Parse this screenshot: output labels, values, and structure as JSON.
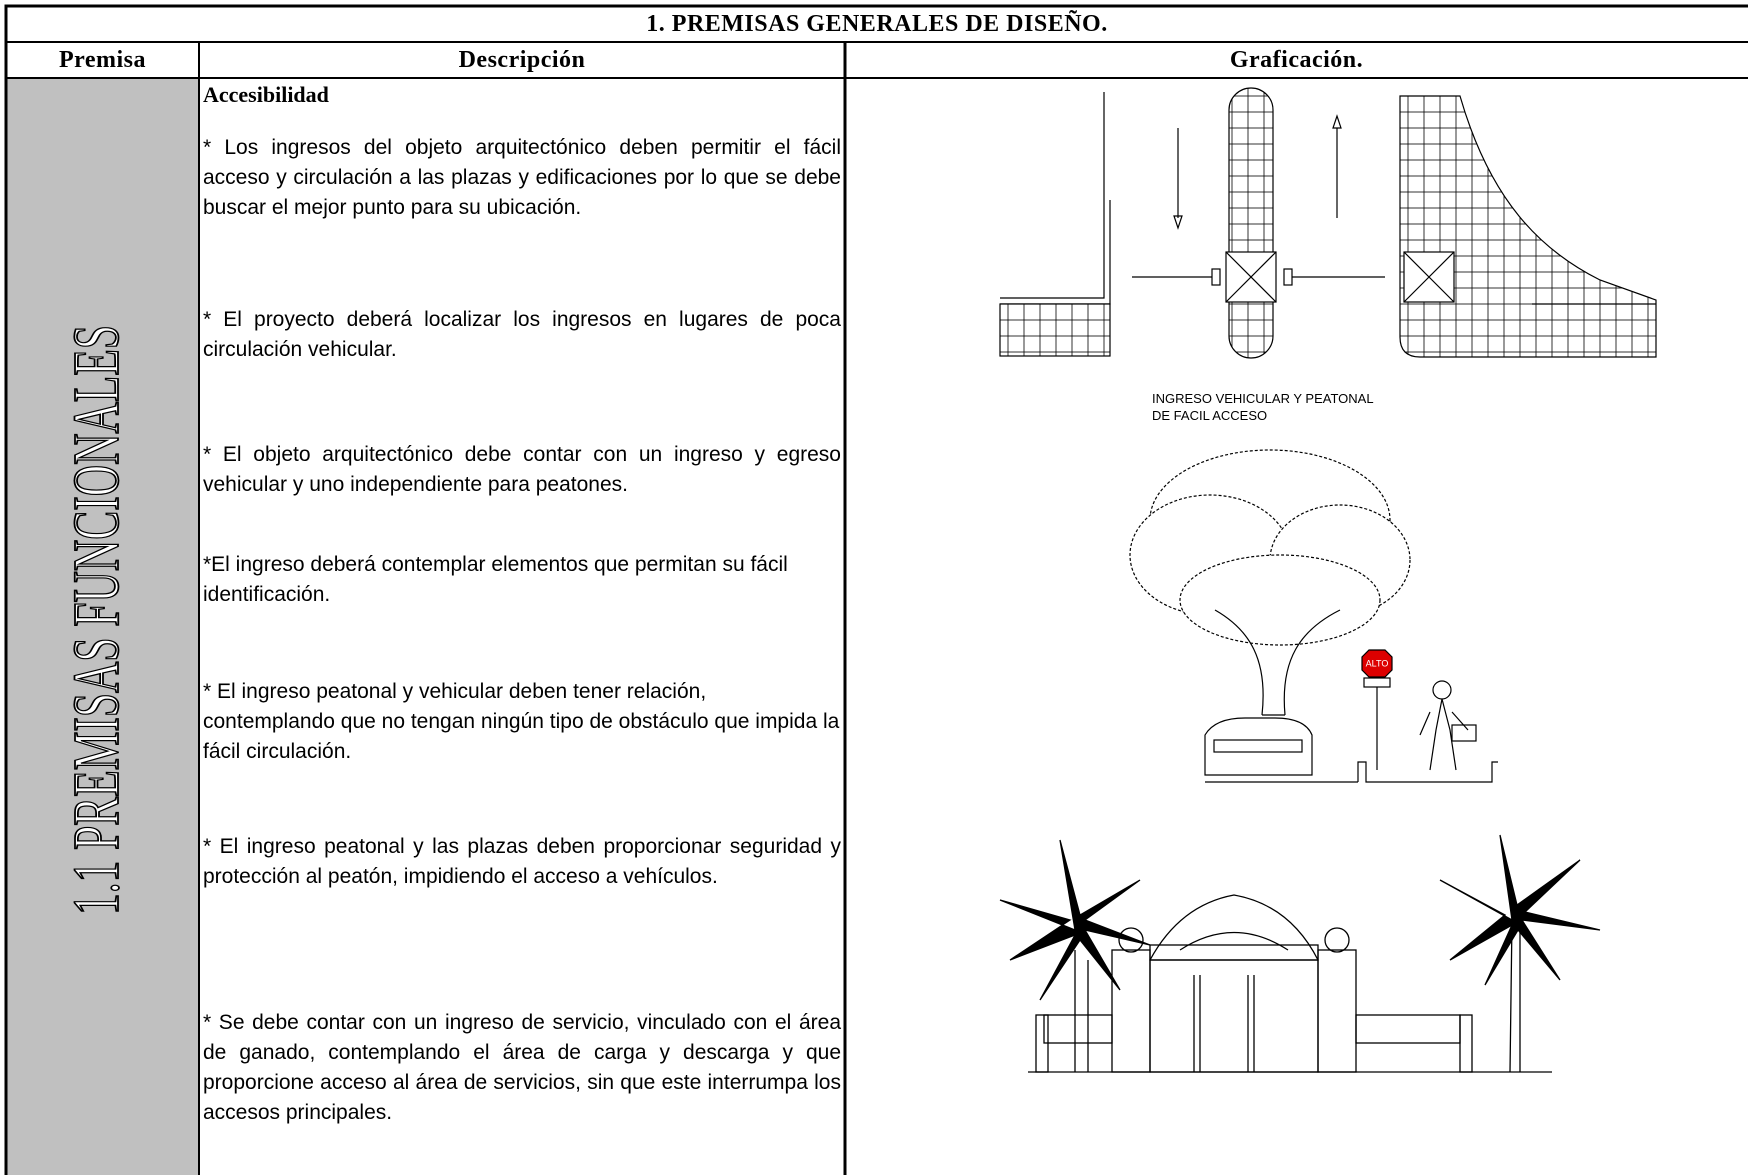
{
  "title": "1. PREMISAS GENERALES DE DISEÑO.",
  "headers": [
    "Premisa",
    "Descripción",
    "Graficación."
  ],
  "premisa": "1.1 PREMISAS FUNCIONALES",
  "description": {
    "heading": "Accesibilidad",
    "paragraphs": [
      "* Los ingresos del objeto arquitectónico deben permitir el fácil acceso y circulación a las plazas y edificaciones por lo que se debe buscar el mejor punto para su ubicación.",
      "* El proyecto deberá localizar los ingresos en lugares de poca circulación vehicular.",
      "* El objeto arquitectónico debe contar con un ingreso y egreso vehicular y uno independiente para peatones.",
      "*El ingreso deberá contemplar elementos que permitan su fácil identificación.",
      "* El ingreso peatonal y vehicular deben tener relación, contemplando que no tengan ningún tipo de obstáculo que impida la fácil circulación.",
      "* El ingreso peatonal y las plazas deben proporcionar seguridad y protección al peatón, impidiendo el acceso a vehículos.",
      "* Se debe contar con un ingreso de servicio, vinculado con el área de ganado, contemplando el área de carga y descarga y que proporcione acceso al área de servicios, sin que este interrumpa los accesos principales."
    ]
  },
  "graphic": {
    "caption": [
      "INGRESO VEHICULAR Y PEATONAL",
      "DE FACIL ACCESO"
    ],
    "sign": "ALTO"
  }
}
